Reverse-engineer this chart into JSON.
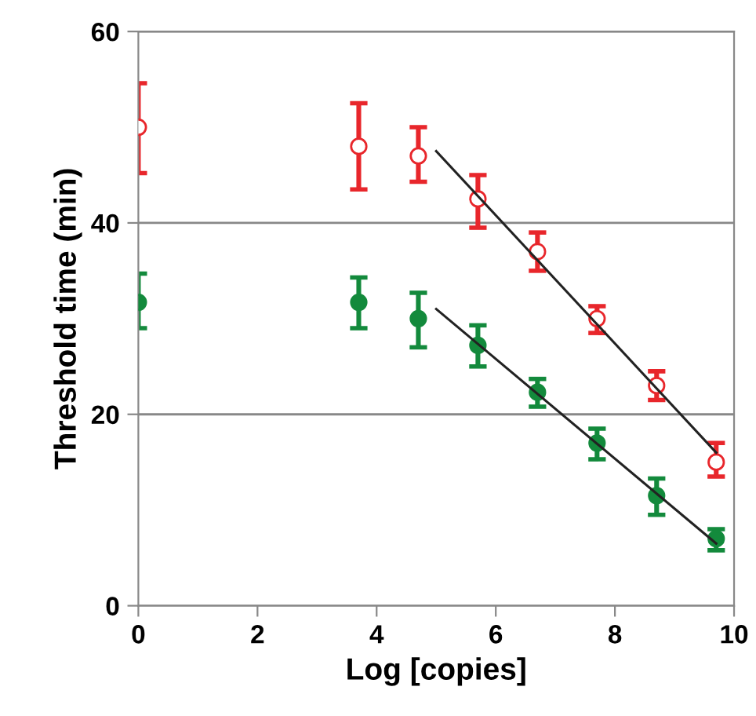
{
  "chart_data": {
    "type": "scatter",
    "xlabel": "Log [copies]",
    "ylabel": "Threshold time (min)",
    "xlim": [
      0,
      10
    ],
    "xticks": [
      0,
      2,
      4,
      6,
      8,
      10
    ],
    "ylim": [
      0,
      60
    ],
    "yticks": [
      0,
      20,
      40,
      60
    ],
    "grid": "y",
    "legend": false,
    "series": [
      {
        "marker": "circle",
        "color": "#e8262b",
        "x": [
          0,
          3.7,
          4.7,
          5.7,
          6.7,
          7.7,
          8.7,
          9.7
        ],
        "values": [
          50,
          48,
          47,
          42.5,
          37,
          30,
          23,
          15
        ],
        "errors": [
          [
            45.2,
            54.6
          ],
          [
            43.5,
            52.5
          ],
          [
            44.3,
            50
          ],
          [
            39.5,
            45
          ],
          [
            35,
            39
          ],
          [
            28.5,
            31.3
          ],
          [
            21.5,
            24.5
          ],
          [
            13.5,
            17
          ]
        ]
      },
      {
        "marker": "circle",
        "color": "#138a3c",
        "x": [
          0,
          3.7,
          4.7,
          5.7,
          6.7,
          7.7,
          8.7,
          9.7
        ],
        "values": [
          31.7,
          31.7,
          30,
          27.2,
          22.3,
          17,
          11.5,
          7
        ],
        "errors": [
          [
            29,
            34.7
          ],
          [
            29,
            34.3
          ],
          [
            27,
            32.7
          ],
          [
            25,
            29.3
          ],
          [
            20.8,
            23.7
          ],
          [
            15.3,
            18.5
          ],
          [
            9.5,
            13.3
          ],
          [
            5.8,
            8
          ]
        ]
      },
      {
        "type": "line",
        "color": "#222222",
        "x": [
          5,
          9.7
        ],
        "values": [
          47.5,
          16
        ]
      },
      {
        "type": "line",
        "color": "#222222",
        "x": [
          5,
          9.7
        ],
        "values": [
          31,
          6.5
        ]
      }
    ]
  }
}
